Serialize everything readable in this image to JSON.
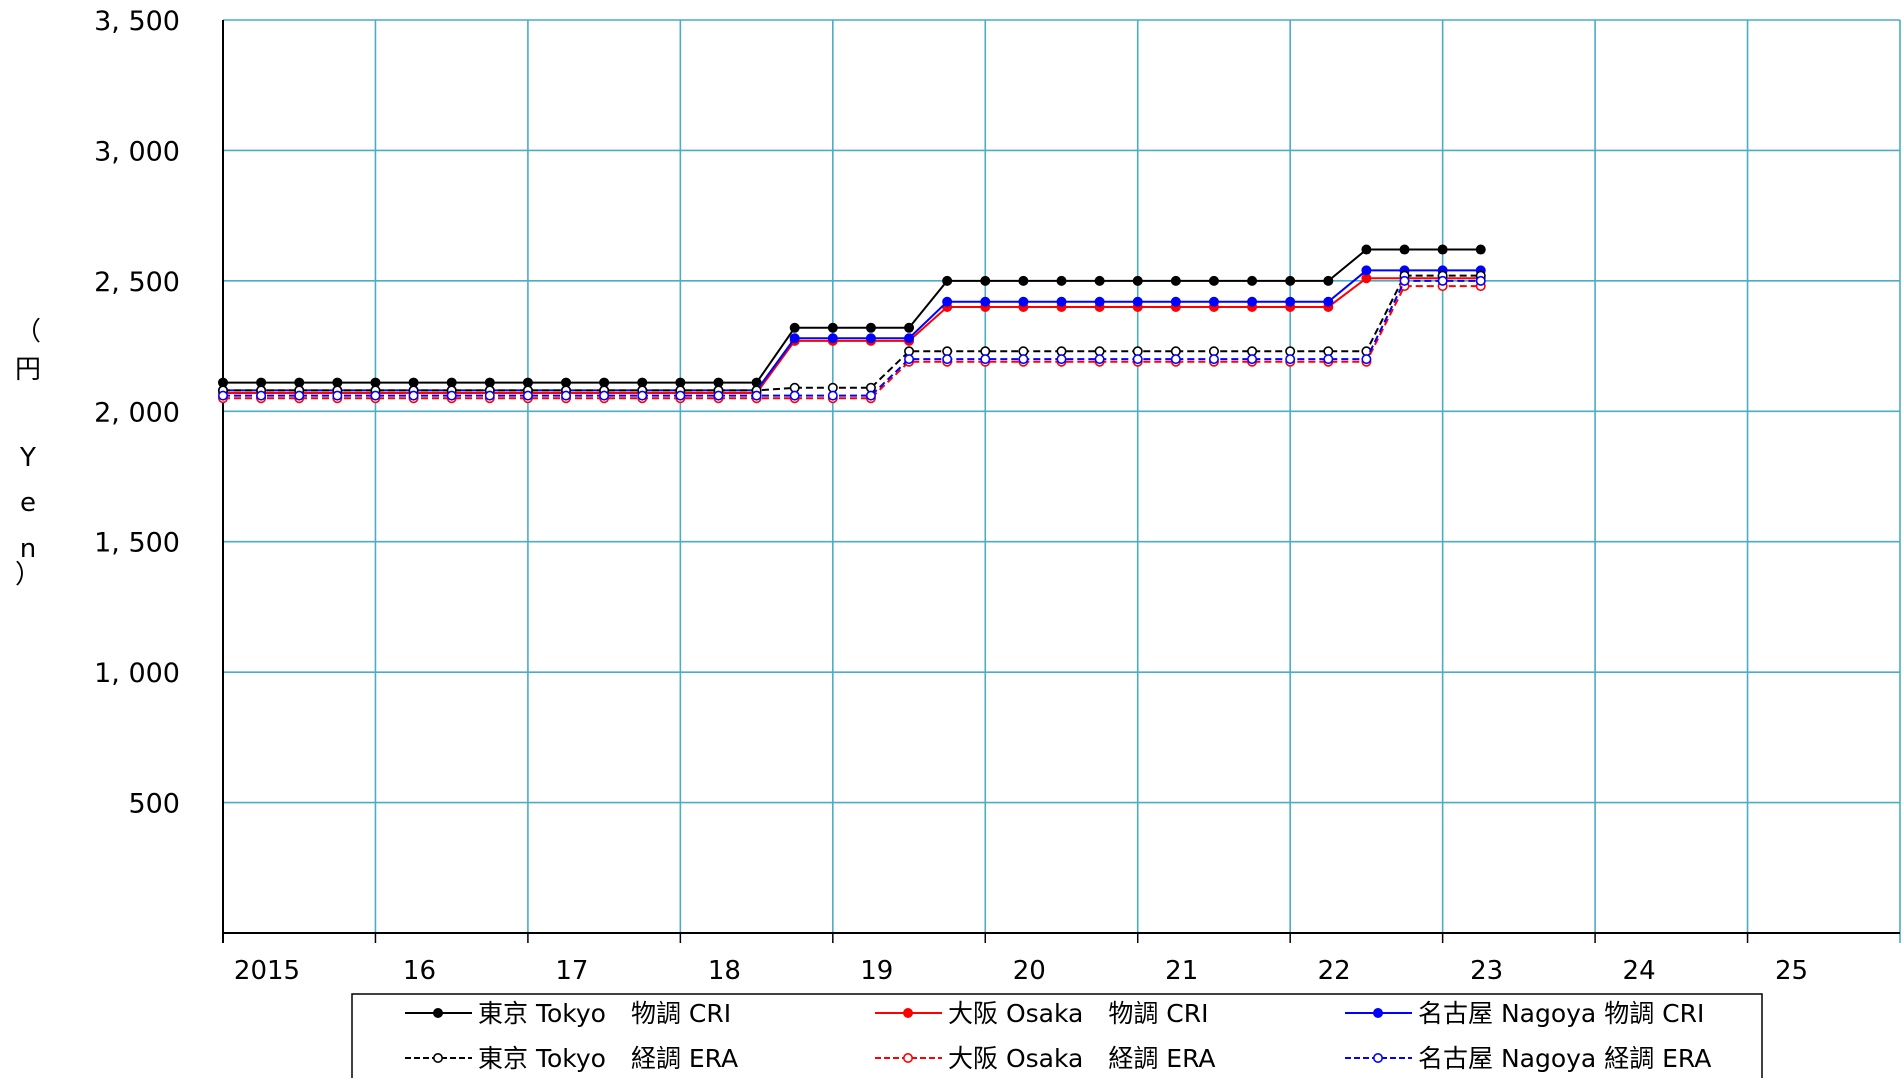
{
  "chart_data": {
    "type": "line",
    "title": "",
    "xlabel": "",
    "ylabel": "円（Yen）",
    "ylabel_chars": [
      "（",
      "円",
      "",
      "Y",
      "e",
      "n",
      "）"
    ],
    "ylim": [
      0,
      3500
    ],
    "xlim": [
      2015.0,
      2026.0
    ],
    "grid": true,
    "legend_position": "bottom",
    "y_ticks": [
      {
        "value": 500,
        "label": "500"
      },
      {
        "value": 1000,
        "label": "1, 000"
      },
      {
        "value": 1500,
        "label": "1, 500"
      },
      {
        "value": 2000,
        "label": "2, 000"
      },
      {
        "value": 2500,
        "label": "2, 500"
      },
      {
        "value": 3000,
        "label": "3, 000"
      },
      {
        "value": 3500,
        "label": "3, 500"
      }
    ],
    "x_ticks": [
      {
        "value": 2015.0,
        "label": "2015"
      },
      {
        "value": 2016.0,
        "label": "16"
      },
      {
        "value": 2017.0,
        "label": "17"
      },
      {
        "value": 2018.0,
        "label": "18"
      },
      {
        "value": 2019.0,
        "label": "19"
      },
      {
        "value": 2020.0,
        "label": "20"
      },
      {
        "value": 2021.0,
        "label": "21"
      },
      {
        "value": 2022.0,
        "label": "22"
      },
      {
        "value": 2023.0,
        "label": "23"
      },
      {
        "value": 2024.0,
        "label": "24"
      },
      {
        "value": 2025.0,
        "label": "25"
      }
    ],
    "x": [
      2015.0,
      2015.25,
      2015.5,
      2015.75,
      2016.0,
      2016.25,
      2016.5,
      2016.75,
      2017.0,
      2017.25,
      2017.5,
      2017.75,
      2018.0,
      2018.25,
      2018.5,
      2018.75,
      2019.0,
      2019.25,
      2019.5,
      2019.75,
      2020.0,
      2020.25,
      2020.5,
      2020.75,
      2021.0,
      2021.25,
      2021.5,
      2021.75,
      2022.0,
      2022.25,
      2022.5,
      2022.75,
      2023.0,
      2023.25
    ],
    "series": [
      {
        "name": "東京 Tokyo　物調 CRI",
        "color": "#000000",
        "dashed": false,
        "marker": "filled",
        "values": [
          2110,
          2110,
          2110,
          2110,
          2110,
          2110,
          2110,
          2110,
          2110,
          2110,
          2110,
          2110,
          2110,
          2110,
          2110,
          2320,
          2320,
          2320,
          2320,
          2500,
          2500,
          2500,
          2500,
          2500,
          2500,
          2500,
          2500,
          2500,
          2500,
          2500,
          2620,
          2620,
          2620,
          2620
        ]
      },
      {
        "name": "大阪 Osaka　物調 CRI",
        "color": "#ff0000",
        "dashed": false,
        "marker": "filled",
        "values": [
          2070,
          2070,
          2070,
          2070,
          2070,
          2070,
          2070,
          2070,
          2070,
          2070,
          2070,
          2070,
          2070,
          2070,
          2070,
          2270,
          2270,
          2270,
          2270,
          2400,
          2400,
          2400,
          2400,
          2400,
          2400,
          2400,
          2400,
          2400,
          2400,
          2400,
          2510,
          2510,
          2510,
          2510
        ]
      },
      {
        "name": "名古屋 Nagoya 物調 CRI",
        "color": "#0000ff",
        "dashed": false,
        "marker": "filled",
        "values": [
          2080,
          2080,
          2080,
          2080,
          2080,
          2080,
          2080,
          2080,
          2080,
          2080,
          2080,
          2080,
          2080,
          2080,
          2080,
          2280,
          2280,
          2280,
          2280,
          2420,
          2420,
          2420,
          2420,
          2420,
          2420,
          2420,
          2420,
          2420,
          2420,
          2420,
          2540,
          2540,
          2540,
          2540
        ]
      },
      {
        "name": "東京 Tokyo　経調 ERA",
        "color": "#000000",
        "dashed": true,
        "marker": "hollow",
        "values": [
          2080,
          2080,
          2080,
          2080,
          2080,
          2080,
          2080,
          2080,
          2080,
          2080,
          2080,
          2080,
          2080,
          2080,
          2080,
          2090,
          2090,
          2090,
          2230,
          2230,
          2230,
          2230,
          2230,
          2230,
          2230,
          2230,
          2230,
          2230,
          2230,
          2230,
          2230,
          2520,
          2520,
          2520
        ]
      },
      {
        "name": "大阪 Osaka　経調 ERA",
        "color": "#ff0000",
        "dashed": true,
        "marker": "hollow",
        "values": [
          2050,
          2050,
          2050,
          2050,
          2050,
          2050,
          2050,
          2050,
          2050,
          2050,
          2050,
          2050,
          2050,
          2050,
          2050,
          2050,
          2050,
          2050,
          2190,
          2190,
          2190,
          2190,
          2190,
          2190,
          2190,
          2190,
          2190,
          2190,
          2190,
          2190,
          2190,
          2480,
          2480,
          2480
        ]
      },
      {
        "name": "名古屋 Nagoya 経調 ERA",
        "color": "#0000ff",
        "dashed": true,
        "marker": "hollow",
        "values": [
          2060,
          2060,
          2060,
          2060,
          2060,
          2060,
          2060,
          2060,
          2060,
          2060,
          2060,
          2060,
          2060,
          2060,
          2060,
          2060,
          2060,
          2060,
          2200,
          2200,
          2200,
          2200,
          2200,
          2200,
          2200,
          2200,
          2200,
          2200,
          2200,
          2200,
          2200,
          2500,
          2500,
          2500
        ]
      }
    ]
  },
  "colors": {
    "grid": "#4bacc6",
    "axis": "#000000",
    "background": "#ffffff"
  }
}
